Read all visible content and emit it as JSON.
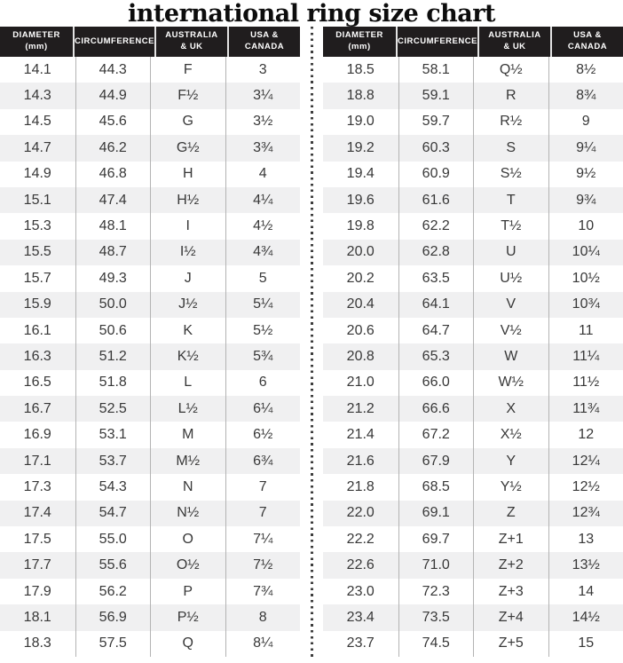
{
  "title": "international ring size chart",
  "colors": {
    "header_bg": "#201d1e",
    "stripe": "#f0f0f1",
    "text": "#383838",
    "divider_dots": "#3d3d3d"
  },
  "chart_data": {
    "type": "table",
    "title": "international ring size chart",
    "columns": [
      [
        "DIAMETER",
        "(mm)"
      ],
      [
        "CIRCUMFERENCE"
      ],
      [
        "AUSTRALIA",
        "& UK"
      ],
      [
        "USA &",
        "CANADA"
      ]
    ],
    "left_rows": [
      [
        "14.1",
        "44.3",
        "F",
        "3"
      ],
      [
        "14.3",
        "44.9",
        "F½",
        "3¼"
      ],
      [
        "14.5",
        "45.6",
        "G",
        "3½"
      ],
      [
        "14.7",
        "46.2",
        "G½",
        "3¾"
      ],
      [
        "14.9",
        "46.8",
        "H",
        "4"
      ],
      [
        "15.1",
        "47.4",
        "H½",
        "4¼"
      ],
      [
        "15.3",
        "48.1",
        "I",
        "4½"
      ],
      [
        "15.5",
        "48.7",
        "I½",
        "4¾"
      ],
      [
        "15.7",
        "49.3",
        "J",
        "5"
      ],
      [
        "15.9",
        "50.0",
        "J½",
        "5¼"
      ],
      [
        "16.1",
        "50.6",
        "K",
        "5½"
      ],
      [
        "16.3",
        "51.2",
        "K½",
        "5¾"
      ],
      [
        "16.5",
        "51.8",
        "L",
        "6"
      ],
      [
        "16.7",
        "52.5",
        "L½",
        "6¼"
      ],
      [
        "16.9",
        "53.1",
        "M",
        "6½"
      ],
      [
        "17.1",
        "53.7",
        "M½",
        "6¾"
      ],
      [
        "17.3",
        "54.3",
        "N",
        "7"
      ],
      [
        "17.4",
        "54.7",
        "N½",
        "7"
      ],
      [
        "17.5",
        "55.0",
        "O",
        "7¼"
      ],
      [
        "17.7",
        "55.6",
        "O½",
        "7½"
      ],
      [
        "17.9",
        "56.2",
        "P",
        "7¾"
      ],
      [
        "18.1",
        "56.9",
        "P½",
        "8"
      ],
      [
        "18.3",
        "57.5",
        "Q",
        "8¼"
      ]
    ],
    "right_rows": [
      [
        "18.5",
        "58.1",
        "Q½",
        "8½"
      ],
      [
        "18.8",
        "59.1",
        "R",
        "8¾"
      ],
      [
        "19.0",
        "59.7",
        "R½",
        "9"
      ],
      [
        "19.2",
        "60.3",
        "S",
        "9¼"
      ],
      [
        "19.4",
        "60.9",
        "S½",
        "9½"
      ],
      [
        "19.6",
        "61.6",
        "T",
        "9¾"
      ],
      [
        "19.8",
        "62.2",
        "T½",
        "10"
      ],
      [
        "20.0",
        "62.8",
        "U",
        "10¼"
      ],
      [
        "20.2",
        "63.5",
        "U½",
        "10½"
      ],
      [
        "20.4",
        "64.1",
        "V",
        "10¾"
      ],
      [
        "20.6",
        "64.7",
        "V½",
        "11"
      ],
      [
        "20.8",
        "65.3",
        "W",
        "11¼"
      ],
      [
        "21.0",
        "66.0",
        "W½",
        "11½"
      ],
      [
        "21.2",
        "66.6",
        "X",
        "11¾"
      ],
      [
        "21.4",
        "67.2",
        "X½",
        "12"
      ],
      [
        "21.6",
        "67.9",
        "Y",
        "12¼"
      ],
      [
        "21.8",
        "68.5",
        "Y½",
        "12½"
      ],
      [
        "22.0",
        "69.1",
        "Z",
        "12¾"
      ],
      [
        "22.2",
        "69.7",
        "Z+1",
        "13"
      ],
      [
        "22.6",
        "71.0",
        "Z+2",
        "13½"
      ],
      [
        "23.0",
        "72.3",
        "Z+3",
        "14"
      ],
      [
        "23.4",
        "73.5",
        "Z+4",
        "14½"
      ],
      [
        "23.7",
        "74.5",
        "Z+5",
        "15"
      ]
    ]
  }
}
